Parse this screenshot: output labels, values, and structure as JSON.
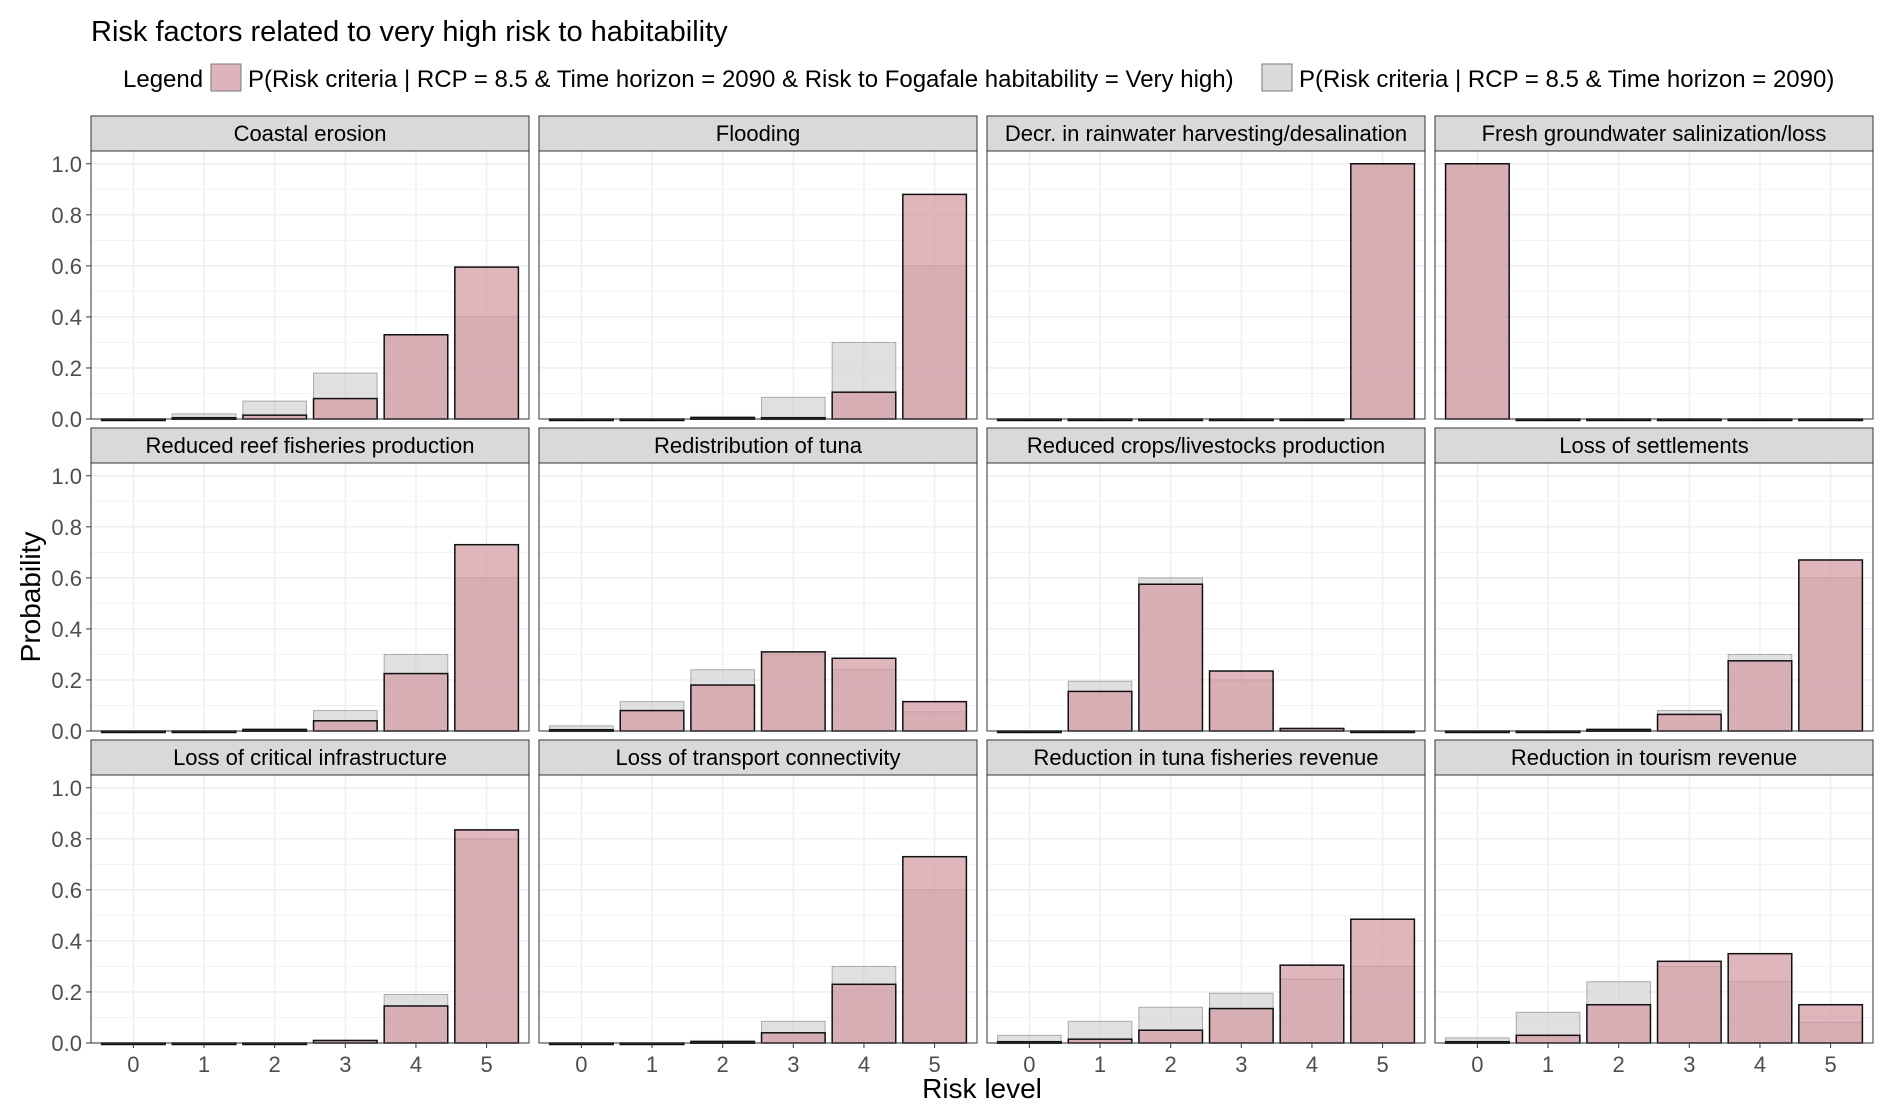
{
  "chart_data": {
    "type": "bar",
    "title": "Risk factors related to very high risk to habitability",
    "legend": {
      "title": "Legend",
      "placement": "top",
      "entries": [
        "P(Risk criteria | RCP = 8.5 & Time horizon = 2090 & Risk to Fogafale habitability = Very high)",
        "P(Risk criteria | RCP = 8.5 & Time horizon = 2090)"
      ]
    },
    "xlabel": "Risk level",
    "ylabel": "Probability",
    "categories": [
      "0",
      "1",
      "2",
      "3",
      "4",
      "5"
    ],
    "yticks": [
      "0.0",
      "0.2",
      "0.4",
      "0.6",
      "0.8",
      "1.0"
    ],
    "ylim": [
      0,
      1.05
    ],
    "grid": true,
    "colors": {
      "conditional": "#d49aa3",
      "baseline": "#cccccc",
      "strip": "#d9d9d9",
      "grid": "#ebebeb"
    },
    "series_names": [
      "conditional",
      "baseline"
    ],
    "panels": [
      {
        "name": "Coastal erosion",
        "conditional": [
          0,
          0.005,
          0.015,
          0.08,
          0.33,
          0.595
        ],
        "baseline": [
          0,
          0.02,
          0.07,
          0.18,
          0.33,
          0.4
        ]
      },
      {
        "name": "Flooding",
        "conditional": [
          0,
          0,
          0.005,
          0.005,
          0.105,
          0.88
        ],
        "baseline": [
          0,
          0,
          0.01,
          0.085,
          0.3,
          0.6
        ]
      },
      {
        "name": "Decr. in rainwater harvesting/desalination",
        "conditional": [
          0,
          0,
          0,
          0,
          0,
          1.0
        ],
        "baseline": [
          0,
          0,
          0,
          0,
          0,
          1.0
        ]
      },
      {
        "name": "Fresh groundwater salinization/loss",
        "conditional": [
          1.0,
          0,
          0,
          0,
          0,
          0
        ],
        "baseline": [
          1.0,
          0,
          0,
          0,
          0,
          0
        ]
      },
      {
        "name": "Reduced reef fisheries production",
        "conditional": [
          0,
          0,
          0.005,
          0.04,
          0.225,
          0.73
        ],
        "baseline": [
          0,
          0,
          0.01,
          0.08,
          0.3,
          0.6
        ]
      },
      {
        "name": "Redistribution of tuna",
        "conditional": [
          0.005,
          0.08,
          0.18,
          0.31,
          0.285,
          0.115
        ],
        "baseline": [
          0.02,
          0.115,
          0.24,
          0.3,
          0.24,
          0.075
        ]
      },
      {
        "name": "Reduced crops/livestocks production",
        "conditional": [
          0,
          0.155,
          0.575,
          0.235,
          0.01,
          0
        ],
        "baseline": [
          0,
          0.195,
          0.6,
          0.2,
          0.005,
          0
        ]
      },
      {
        "name": "Loss of settlements",
        "conditional": [
          0,
          0,
          0.005,
          0.065,
          0.275,
          0.67
        ],
        "baseline": [
          0,
          0,
          0.01,
          0.08,
          0.3,
          0.6
        ]
      },
      {
        "name": "Loss of critical infrastructure",
        "conditional": [
          0,
          0,
          0,
          0.01,
          0.145,
          0.835
        ],
        "baseline": [
          0,
          0,
          0,
          0.005,
          0.19,
          0.8
        ]
      },
      {
        "name": "Loss of transport connectivity",
        "conditional": [
          0,
          0,
          0.005,
          0.04,
          0.23,
          0.73
        ],
        "baseline": [
          0,
          0,
          0.01,
          0.085,
          0.3,
          0.6
        ]
      },
      {
        "name": "Reduction in tuna fisheries revenue",
        "conditional": [
          0.005,
          0.015,
          0.05,
          0.135,
          0.305,
          0.485
        ],
        "baseline": [
          0.03,
          0.085,
          0.14,
          0.195,
          0.25,
          0.3
        ]
      },
      {
        "name": "Reduction in tourism revenue",
        "conditional": [
          0.005,
          0.03,
          0.15,
          0.32,
          0.35,
          0.15
        ],
        "baseline": [
          0.02,
          0.12,
          0.24,
          0.3,
          0.24,
          0.08
        ]
      }
    ]
  }
}
